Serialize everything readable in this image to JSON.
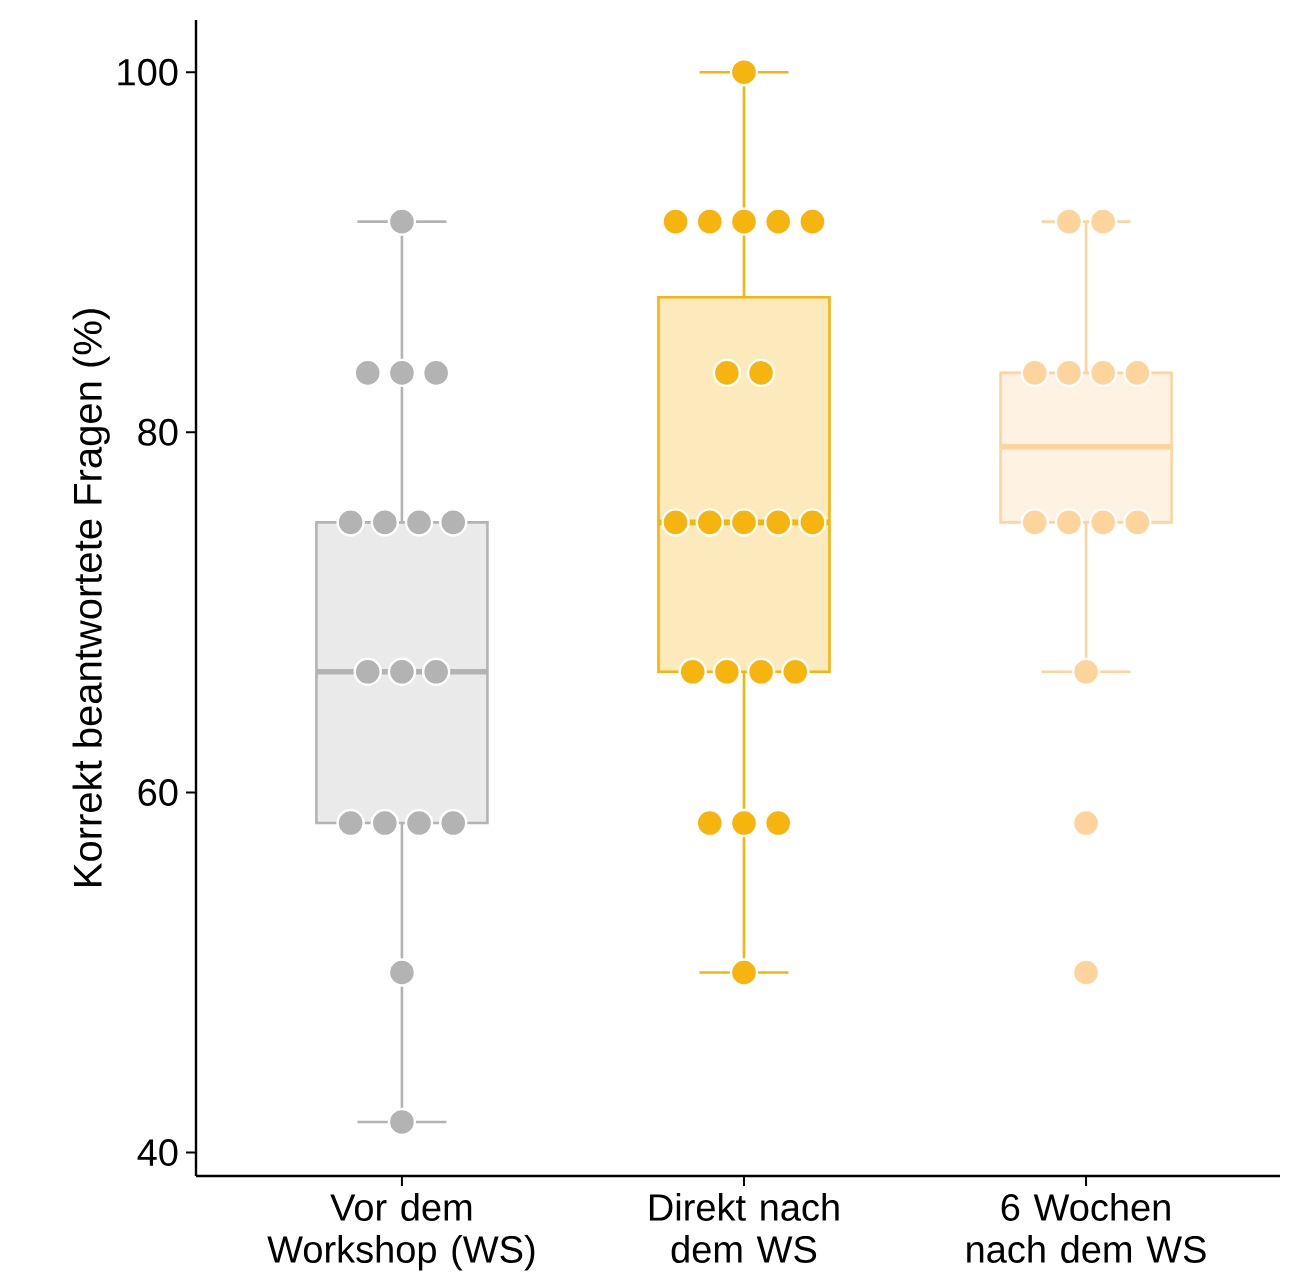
{
  "chart_data": {
    "type": "box",
    "ylabel": "Korrekt beantwortete Fragen (%)",
    "categories": [
      "Vor dem Workshop (WS)",
      "Direkt nach dem WS",
      "6 Wochen nach dem WS"
    ],
    "colors": [
      "#b3b3b3",
      "#f6b40e",
      "#fdd49c"
    ],
    "boxes": [
      {
        "low": 41.7,
        "q1": 58.3,
        "median": 66.7,
        "q3": 75,
        "high": 91.7
      },
      {
        "low": 50,
        "q1": 66.7,
        "median": 75,
        "q3": 87.5,
        "high": 100
      },
      {
        "low": 66.7,
        "q1": 75,
        "median": 79.2,
        "q3": 83.3,
        "high": 91.7
      }
    ],
    "ylim": [
      38.7,
      102.9
    ],
    "yticks": [
      40,
      60,
      80,
      100
    ],
    "marker": "circle",
    "series": [
      {
        "type": "scatter",
        "color": "#b3b3b3",
        "x": [
          "Vor dem Workshop (WS)",
          "Vor dem Workshop (WS)",
          "Vor dem Workshop (WS)",
          "Vor dem Workshop (WS)",
          "Vor dem Workshop (WS)",
          "Vor dem Workshop (WS)",
          "Vor dem Workshop (WS)",
          "Vor dem Workshop (WS)",
          "Vor dem Workshop (WS)",
          "Vor dem Workshop (WS)",
          "Vor dem Workshop (WS)",
          "Vor dem Workshop (WS)",
          "Vor dem Workshop (WS)",
          "Vor dem Workshop (WS)",
          "Vor dem Workshop (WS)",
          "Vor dem Workshop (WS)",
          "Vor dem Workshop (WS)"
        ],
        "values": [
          91.7,
          83.3,
          83.3,
          83.3,
          75,
          75,
          75,
          75,
          66.7,
          66.7,
          66.7,
          58.3,
          58.3,
          58.3,
          58.3,
          50,
          41.7
        ]
      },
      {
        "type": "scatter",
        "color": "#f6b40e",
        "x": [
          "Direkt nach dem WS",
          "Direkt nach dem WS",
          "Direkt nach dem WS",
          "Direkt nach dem WS",
          "Direkt nach dem WS",
          "Direkt nach dem WS",
          "Direkt nach dem WS",
          "Direkt nach dem WS",
          "Direkt nach dem WS",
          "Direkt nach dem WS",
          "Direkt nach dem WS",
          "Direkt nach dem WS",
          "Direkt nach dem WS",
          "Direkt nach dem WS",
          "Direkt nach dem WS",
          "Direkt nach dem WS",
          "Direkt nach dem WS",
          "Direkt nach dem WS",
          "Direkt nach dem WS",
          "Direkt nach dem WS",
          "Direkt nach dem WS"
        ],
        "values": [
          100,
          91.7,
          91.7,
          91.7,
          91.7,
          91.7,
          83.3,
          83.3,
          75,
          75,
          75,
          75,
          75,
          66.7,
          66.7,
          66.7,
          66.7,
          58.3,
          58.3,
          58.3,
          50
        ]
      },
      {
        "type": "scatter",
        "color": "#fdd49c",
        "x": [
          "6 Wochen nach dem WS",
          "6 Wochen nach dem WS",
          "6 Wochen nach dem WS",
          "6 Wochen nach dem WS",
          "6 Wochen nach dem WS",
          "6 Wochen nach dem WS",
          "6 Wochen nach dem WS",
          "6 Wochen nach dem WS",
          "6 Wochen nach dem WS",
          "6 Wochen nach dem WS",
          "6 Wochen nach dem WS",
          "6 Wochen nach dem WS",
          "6 Wochen nach dem WS"
        ],
        "values": [
          91.7,
          91.7,
          83.3,
          83.3,
          83.3,
          83.3,
          75,
          75,
          75,
          75,
          66.7,
          58.3,
          50
        ]
      }
    ]
  }
}
